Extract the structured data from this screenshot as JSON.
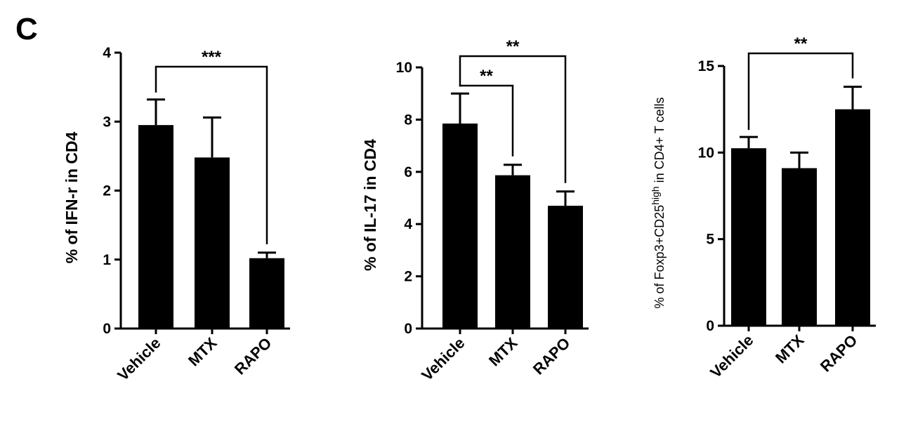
{
  "panel_label": "C",
  "chart_data": [
    {
      "type": "bar",
      "categories": [
        "Vehicle",
        "MTX",
        "RAPO"
      ],
      "values": [
        2.95,
        2.48,
        1.02
      ],
      "errors": [
        0.37,
        0.58,
        0.08
      ],
      "ylabel": "% of IFN-r in CD4",
      "ylim": [
        0,
        4
      ],
      "yticks": [
        0,
        1,
        2,
        3,
        4
      ],
      "significance": [
        {
          "from": 0,
          "to": 2,
          "label": "***"
        }
      ]
    },
    {
      "type": "bar",
      "categories": [
        "Vehicle",
        "MTX",
        "RAPO"
      ],
      "values": [
        7.85,
        5.87,
        4.7
      ],
      "errors": [
        1.15,
        0.4,
        0.55
      ],
      "ylabel": "% of IL-17 in CD4",
      "ylim": [
        0,
        10
      ],
      "yticks": [
        0,
        2,
        4,
        6,
        8,
        10
      ],
      "significance": [
        {
          "from": 0,
          "to": 1,
          "label": "**"
        },
        {
          "from": 0,
          "to": 2,
          "label": "**"
        }
      ]
    },
    {
      "type": "bar",
      "categories": [
        "Vehicle",
        "MTX",
        "RAPO"
      ],
      "values": [
        10.25,
        9.1,
        12.5
      ],
      "errors": [
        0.65,
        0.9,
        1.3
      ],
      "ylabel_parts": [
        "% of Foxp3+CD25",
        "high",
        " in CD4+ T cells"
      ],
      "ylim": [
        0,
        15
      ],
      "yticks": [
        0,
        5,
        10,
        15
      ],
      "significance": [
        {
          "from": 0,
          "to": 2,
          "label": "**"
        }
      ]
    }
  ]
}
